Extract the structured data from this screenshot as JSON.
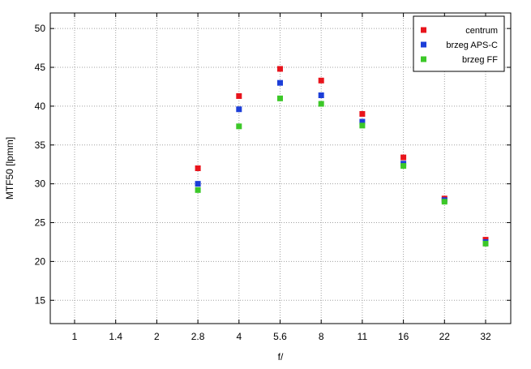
{
  "chart_data": {
    "type": "scatter",
    "title": "",
    "xlabel": "f/",
    "ylabel": "MTF50 [lpmm]",
    "categories": [
      "1",
      "1.4",
      "2",
      "2.8",
      "4",
      "5.6",
      "8",
      "11",
      "16",
      "22",
      "32"
    ],
    "ylim": [
      12,
      52
    ],
    "yticks": [
      15,
      20,
      25,
      30,
      35,
      40,
      45,
      50
    ],
    "grid": true,
    "legend_position": "top-right",
    "series": [
      {
        "name": "centrum",
        "color": "#e8141c",
        "points": [
          {
            "x": "2.8",
            "y": 32.0
          },
          {
            "x": "4",
            "y": 41.3
          },
          {
            "x": "5.6",
            "y": 44.8
          },
          {
            "x": "8",
            "y": 43.3
          },
          {
            "x": "11",
            "y": 39.0
          },
          {
            "x": "16",
            "y": 33.4
          },
          {
            "x": "22",
            "y": 28.1
          },
          {
            "x": "32",
            "y": 22.8
          }
        ]
      },
      {
        "name": "brzeg APS-C",
        "color": "#1c3ed8",
        "points": [
          {
            "x": "2.8",
            "y": 30.0
          },
          {
            "x": "4",
            "y": 39.6
          },
          {
            "x": "5.6",
            "y": 43.0
          },
          {
            "x": "8",
            "y": 41.4
          },
          {
            "x": "11",
            "y": 38.0
          },
          {
            "x": "16",
            "y": 32.6
          },
          {
            "x": "22",
            "y": 27.9
          },
          {
            "x": "32",
            "y": 22.5
          }
        ]
      },
      {
        "name": "brzeg FF",
        "color": "#3cc828",
        "points": [
          {
            "x": "2.8",
            "y": 29.2
          },
          {
            "x": "4",
            "y": 37.4
          },
          {
            "x": "5.6",
            "y": 41.0
          },
          {
            "x": "8",
            "y": 40.3
          },
          {
            "x": "11",
            "y": 37.5
          },
          {
            "x": "16",
            "y": 32.3
          },
          {
            "x": "22",
            "y": 27.7
          },
          {
            "x": "32",
            "y": 22.3
          }
        ]
      }
    ]
  }
}
